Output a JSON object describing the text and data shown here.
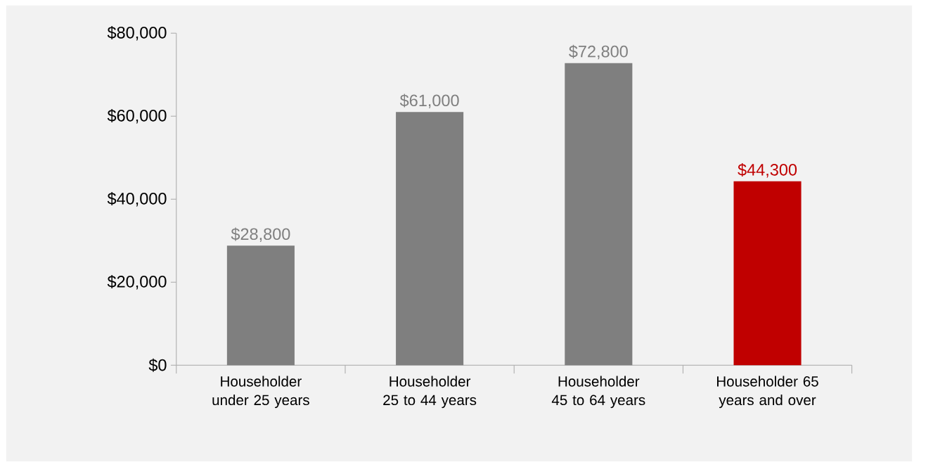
{
  "chart_data": {
    "type": "bar",
    "categories": [
      "Householder under 25 years",
      "Householder 25 to 44 years",
      "Householder 45 to 64 years",
      "Householder 65 years and over"
    ],
    "values": [
      28800,
      61000,
      72800,
      44300
    ],
    "colors": [
      "#7f7f7f",
      "#7f7f7f",
      "#7f7f7f",
      "#c00000"
    ],
    "value_labels": [
      "$28,800",
      "$61,000",
      "$72,800",
      "$44,300"
    ],
    "ylim": [
      0,
      80000
    ],
    "yticks": [
      {
        "value": 0,
        "label": "$0"
      },
      {
        "value": 20000,
        "label": "$20,000"
      },
      {
        "value": 40000,
        "label": "$40,000"
      },
      {
        "value": 60000,
        "label": "$60,000"
      },
      {
        "value": 80000,
        "label": "$80,000"
      }
    ],
    "grid": false
  }
}
